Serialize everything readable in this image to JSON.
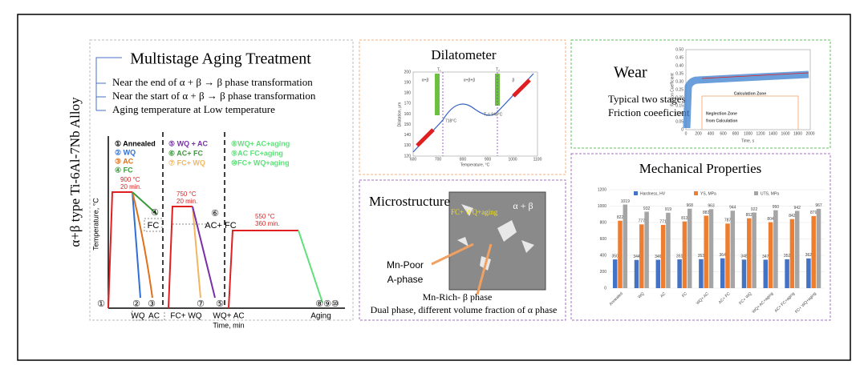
{
  "side_title": "α+β type Ti-6Al-7Nb Alloy",
  "aging": {
    "title": "Multistage Aging Treatment",
    "bullets": [
      "Near the end of α + β → β phase transformation",
      "Near the start of α + β → β phase transformation",
      "Aging temperature at Low temperature"
    ],
    "axis_y": "Temperature, °C",
    "axis_x": "Time, min",
    "legend": [
      {
        "label": "① Annealed",
        "color": "#000000"
      },
      {
        "label": "② WQ",
        "color": "#2f6fd6"
      },
      {
        "label": "③ AC",
        "color": "#e0701a"
      },
      {
        "label": "④ FC",
        "color": "#3a9a3a"
      },
      {
        "label": "⑤ WQ + AC",
        "color": "#7a2fa8"
      },
      {
        "label": "⑥ AC+ FC",
        "color": "#3a9a3a"
      },
      {
        "label": "⑦ FC+ WQ",
        "color": "#f2b660"
      },
      {
        "label": "⑧WQ+ AC+aging",
        "color": "#5fe07a"
      },
      {
        "label": "⑨AC FC+aging",
        "color": "#5fe07a"
      },
      {
        "label": "⑩FC+ WQ+aging",
        "color": "#5fe07a"
      }
    ],
    "temps": [
      "900 °C",
      "20 min.",
      "750 °C",
      "20 min.",
      "550 °C",
      "360 min."
    ],
    "markers": [
      "①",
      "②",
      "③",
      "⑦",
      "⑤",
      "⑧⑨⑩",
      "④",
      "FC",
      "⑥",
      "AC+ FC"
    ],
    "bottom": [
      "WQ",
      "AC",
      "FC+ WQ",
      "WQ+ AC",
      "Aging"
    ]
  },
  "dilatometer": {
    "title": "Dilatometer",
    "axis_y": "Dilatation, μm",
    "axis_x": "Temperature, °C",
    "yticks": [
      "200",
      "190",
      "180",
      "170",
      "160",
      "150",
      "140",
      "130",
      "120"
    ],
    "xticks": [
      "600",
      "700",
      "800",
      "900",
      "1000",
      "1100"
    ],
    "regions": [
      "α+β",
      "α+β+β",
      "β"
    ],
    "points": [
      "T₁",
      "T₂",
      "718°C",
      "T₂= 940°C"
    ]
  },
  "wear": {
    "title": "Wear",
    "lines": [
      "Typical two stages",
      "Friction coeeficient"
    ],
    "axis_y": "Friction Coefficient",
    "axis_x": "Time, s",
    "yticks": [
      "0.50",
      "0.45",
      "0.40",
      "0.35",
      "0.30",
      "0.25",
      "0.20",
      "0.15",
      "0.10",
      "0.05",
      "0"
    ],
    "xticks": [
      "0",
      "200",
      "400",
      "600",
      "800",
      "1000",
      "1200",
      "1400",
      "1600",
      "1800",
      "2000"
    ],
    "zones": [
      "Calculation Zone",
      "Neglection Zone",
      "from Calculation"
    ]
  },
  "microstructure": {
    "title": "Microstructure",
    "phase": "α + β",
    "sample": "FC+ WQ+aging",
    "labels": [
      "Mn-Poor",
      "A-phase",
      "Mn-Rich- β phase",
      "Dual phase, different volume fraction of α phase"
    ]
  },
  "mechanical": {
    "title": "Mechanical Properties",
    "categories": [
      "Annealed",
      "WQ",
      "AC",
      "FC",
      "WQ+ AC",
      "AC+ FC",
      "FC+ WQ",
      "WQ+ AC+aging",
      "AC+ FC+aging",
      "FC+ WQ+aging"
    ],
    "series": [
      {
        "name": "Hardness, HV",
        "color": "#4472c4",
        "values": [
          350,
          344,
          346,
          351,
          353,
          364,
          348,
          347,
          352,
          362
        ]
      },
      {
        "name": "YS, MPa",
        "color": "#ed7d31",
        "values": [
          822,
          777,
          771,
          813,
          883,
          787,
          852,
          804,
          842,
          879
        ]
      },
      {
        "name": "UTS, MPa",
        "color": "#a5a5a5",
        "values": [
          1019,
          932,
          919,
          968,
          963,
          944,
          922,
          950,
          942,
          967
        ]
      }
    ],
    "ylim": [
      0,
      1200
    ],
    "yticks": [
      0,
      200,
      400,
      600,
      800,
      1000,
      1200
    ]
  }
}
